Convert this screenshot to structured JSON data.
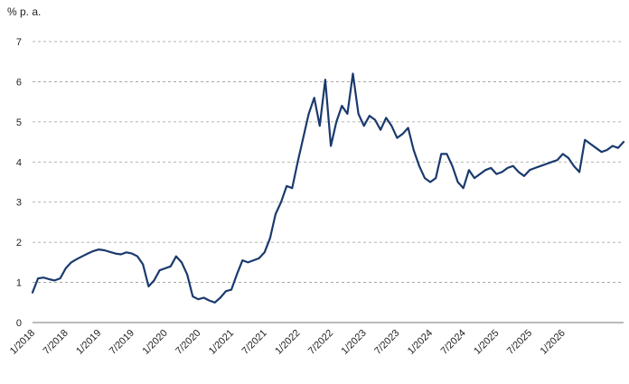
{
  "chart_data": {
    "type": "line",
    "title": "",
    "xlabel": "",
    "ylabel": "% p. a.",
    "ylim": [
      0,
      7
    ],
    "yticks": [
      0,
      1,
      2,
      3,
      4,
      5,
      6,
      7
    ],
    "grid": "horizontal dashed",
    "legend": "none",
    "x_range": [
      "2018-01",
      "2026-12"
    ],
    "x_tick_labels": [
      "1/2018",
      "7/2018",
      "1/2019",
      "7/2019",
      "1/2020",
      "7/2020",
      "1/2021",
      "7/2021",
      "1/2022",
      "7/2022",
      "1/2023",
      "7/2023",
      "1/2024",
      "7/2024",
      "1/2025",
      "7/2025",
      "1/2026"
    ],
    "line_color": "#1a3a6e",
    "series": [
      {
        "x": [
          "2018-01",
          "2018-02",
          "2018-03",
          "2018-04",
          "2018-05",
          "2018-06",
          "2018-07",
          "2018-08",
          "2018-09",
          "2018-10",
          "2018-11",
          "2018-12",
          "2019-01",
          "2019-02",
          "2019-03",
          "2019-04",
          "2019-05",
          "2019-06",
          "2019-07",
          "2019-08",
          "2019-09",
          "2019-10",
          "2019-11",
          "2019-12",
          "2020-01",
          "2020-02",
          "2020-03",
          "2020-04",
          "2020-05",
          "2020-06",
          "2020-07",
          "2020-08",
          "2020-09",
          "2020-10",
          "2020-11",
          "2020-12",
          "2021-01",
          "2021-02",
          "2021-03",
          "2021-04",
          "2021-05",
          "2021-06",
          "2021-07",
          "2021-08",
          "2021-09",
          "2021-10",
          "2021-11",
          "2021-12",
          "2022-01",
          "2022-02",
          "2022-03",
          "2022-04",
          "2022-05",
          "2022-06",
          "2022-07",
          "2022-08",
          "2022-09",
          "2022-10",
          "2022-11",
          "2022-12",
          "2023-01",
          "2023-02",
          "2023-03",
          "2023-04",
          "2023-05",
          "2023-06",
          "2023-07",
          "2023-08",
          "2023-09",
          "2023-10",
          "2023-11",
          "2023-12",
          "2024-01",
          "2024-02",
          "2024-03",
          "2024-04",
          "2024-05",
          "2024-06",
          "2024-07",
          "2024-08",
          "2024-09",
          "2024-10",
          "2024-11",
          "2024-12",
          "2025-01",
          "2025-02",
          "2025-03",
          "2025-04",
          "2025-05",
          "2025-06",
          "2025-07",
          "2025-08",
          "2025-09",
          "2025-10",
          "2025-11",
          "2025-12",
          "2026-01",
          "2026-02",
          "2026-03",
          "2026-04",
          "2026-05",
          "2026-06",
          "2026-07",
          "2026-08",
          "2026-09",
          "2026-10",
          "2026-11",
          "2026-12"
        ],
        "values": [
          0.75,
          1.1,
          1.12,
          1.08,
          1.05,
          1.1,
          1.35,
          1.5,
          1.58,
          1.65,
          1.72,
          1.78,
          1.82,
          1.8,
          1.76,
          1.72,
          1.7,
          1.75,
          1.72,
          1.65,
          1.45,
          0.9,
          1.05,
          1.3,
          1.35,
          1.4,
          1.65,
          1.5,
          1.2,
          0.65,
          0.58,
          0.62,
          0.55,
          0.5,
          0.62,
          0.78,
          0.82,
          1.2,
          1.55,
          1.5,
          1.55,
          1.6,
          1.75,
          2.1,
          2.7,
          3.0,
          3.4,
          3.35,
          4.0,
          4.6,
          5.2,
          5.6,
          4.9,
          6.05,
          4.4,
          5.0,
          5.4,
          5.2,
          6.2,
          5.2,
          4.9,
          5.15,
          5.05,
          4.8,
          5.1,
          4.9,
          4.6,
          4.7,
          4.85,
          4.3,
          3.9,
          3.6,
          3.5,
          3.6,
          4.2,
          4.2,
          3.9,
          3.5,
          3.35,
          3.8,
          3.6,
          3.7,
          3.8,
          3.85,
          3.7,
          3.75,
          3.85,
          3.9,
          3.75,
          3.65,
          3.8,
          3.85,
          3.9,
          3.95,
          4.0,
          4.05,
          4.2,
          4.1,
          3.9,
          3.75,
          4.55,
          4.45,
          4.35,
          4.25,
          4.3,
          4.4,
          4.35,
          4.5
        ]
      }
    ]
  }
}
